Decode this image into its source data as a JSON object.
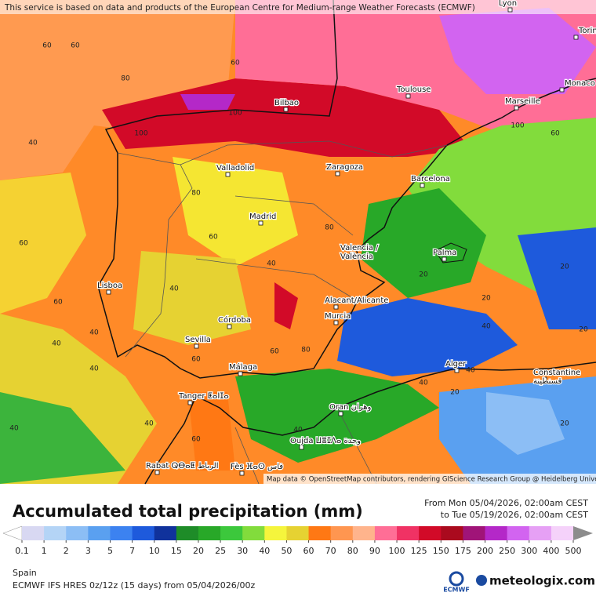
{
  "attribution": "This service is based on data and products of the European Centre for Medium-range Weather Forecasts (ECMWF)",
  "map_credit": "Map data © OpenStreetMap contributors, rendering GIScience Research Group @ Heidelberg University",
  "cities": [
    "Lyon",
    "Torino",
    "Monaco",
    "Marseille",
    "Toulouse",
    "Bilbao",
    "Valladolid",
    "Zaragoza",
    "Barcelona",
    "Madrid",
    "Valencia /\nValència",
    "Palma",
    "Lisboa",
    "Alacant/Alicante",
    "Murcia",
    "Córdoba",
    "Sevilla",
    "Málaga",
    "Alger",
    "Constantine\nقسنطينة",
    "Tanger ⵟⴰⵏⵊⴰ",
    "Oran وهران",
    "Oujda ⵡⴻⵊⴷⴰ وجدة",
    "Rabat ⵕⴱⴰⵟ الرباط",
    "Fès ⴼⴰⵙ فاس"
  ],
  "contour_labels": [
    60,
    60,
    40,
    60,
    80,
    100,
    100,
    80,
    60,
    40,
    40,
    60,
    80,
    60,
    40,
    40,
    60,
    40,
    20,
    20,
    20,
    20,
    40,
    40,
    40,
    20,
    20,
    40,
    60,
    40,
    80,
    60,
    100,
    60,
    40
  ],
  "title": "Accumulated total precipitation (mm)",
  "period_from": "From Mon 05/04/2026, 02:00am CEST",
  "period_to": "to Tue 05/19/2026, 02:00am CEST",
  "legend": {
    "values": [
      0.1,
      1,
      2,
      3,
      5,
      7,
      10,
      15,
      20,
      25,
      30,
      40,
      50,
      60,
      70,
      80,
      90,
      100,
      125,
      150,
      175,
      200,
      250,
      300,
      400,
      500
    ],
    "colors": [
      "#d8d8f2",
      "#b4d4f6",
      "#8cbef5",
      "#5aa0f0",
      "#3c82f0",
      "#1e5adc",
      "#10329c",
      "#1e8c28",
      "#28a828",
      "#3cc83c",
      "#82dc3c",
      "#f5f53c",
      "#e6d232",
      "#ff7814",
      "#ff9650",
      "#ffb48c",
      "#ff6e96",
      "#f03264",
      "#d20a28",
      "#aa0a1e",
      "#a01478",
      "#b428c8",
      "#d264f0",
      "#e6a0f5",
      "#f5d2fa",
      "#d8d8d8"
    ],
    "low_color": "#ffffff",
    "high_color": "#8c8c8c"
  },
  "region": "Spain",
  "model": "ECMWF IFS HRES 0z/12z (15 days) from  05/04/2026/00z",
  "ecmwf_logo": "ECMWF",
  "brand": "meteologix.com"
}
